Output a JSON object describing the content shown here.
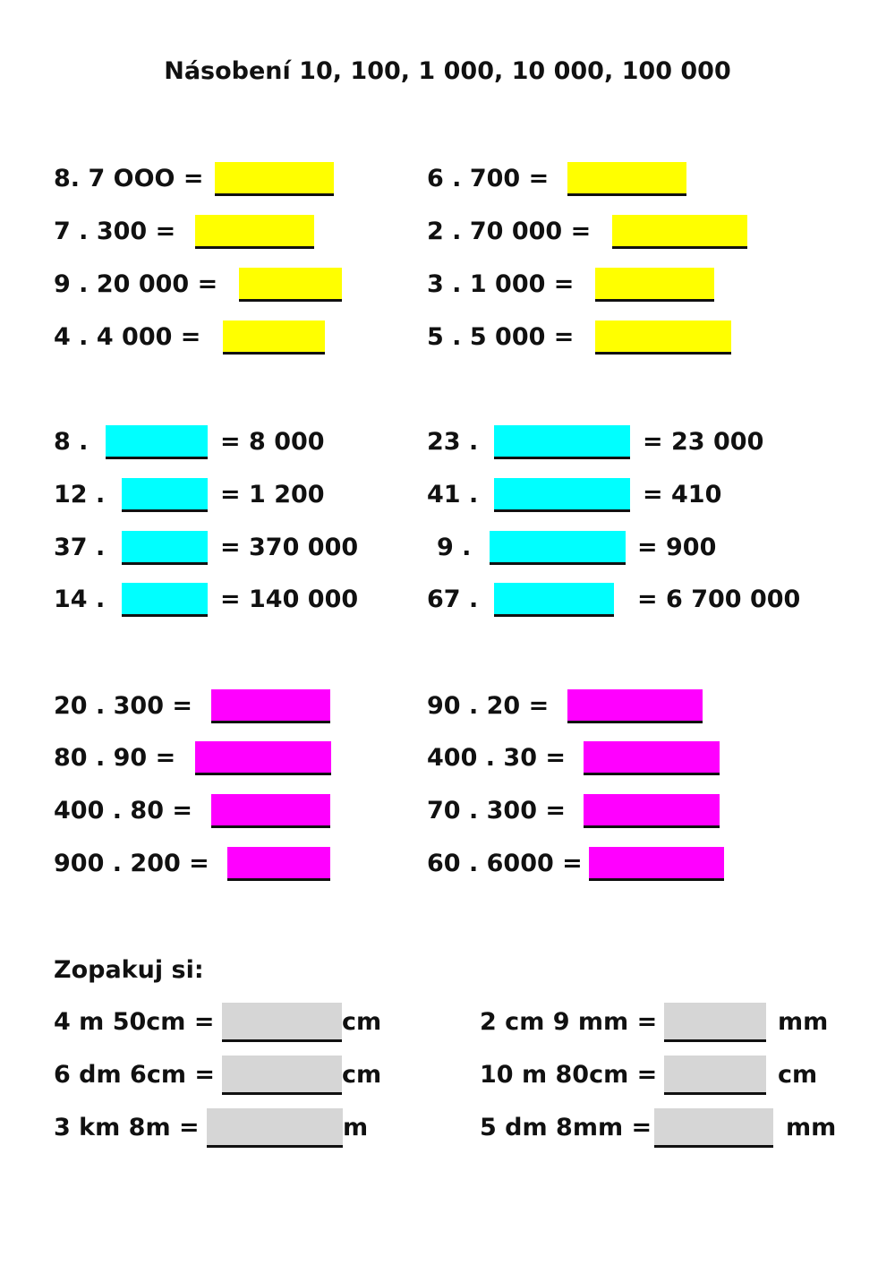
{
  "title": "Násobení 10, 100, 1 000, 10 000, 100 000",
  "colors": {
    "section1": "#ffff00",
    "section2": "#00ffff",
    "section3": "#ff00ff",
    "section4": "#d6d6d6"
  },
  "review_heading": "Zopakuj si:",
  "exercises": [
    {
      "prefix": "8. 7 OOO =",
      "suffix": "",
      "answer": ""
    },
    {
      "prefix": "7 . 300 =",
      "suffix": "",
      "answer": ""
    },
    {
      "prefix": "9 . 20 000 =",
      "suffix": "",
      "answer": ""
    },
    {
      "prefix": "4 . 4 000 =",
      "suffix": "",
      "answer": ""
    },
    {
      "prefix": "6 . 700 =",
      "suffix": "",
      "answer": ""
    },
    {
      "prefix": "2 . 70 000 =",
      "suffix": "",
      "answer": ""
    },
    {
      "prefix": "3 . 1 000 =",
      "suffix": "",
      "answer": ""
    },
    {
      "prefix": "5 . 5 000 =",
      "suffix": "",
      "answer": ""
    },
    {
      "prefix": "8 .",
      "suffix": "= 8 000",
      "answer": ""
    },
    {
      "prefix": "12 .",
      "suffix": "= 1 200",
      "answer": ""
    },
    {
      "prefix": "37 .",
      "suffix": "= 370 000",
      "answer": ""
    },
    {
      "prefix": "14 .",
      "suffix": "= 140 000",
      "answer": ""
    },
    {
      "prefix": "23 .",
      "suffix": "= 23 000",
      "answer": ""
    },
    {
      "prefix": "41 .",
      "suffix": "= 410",
      "answer": ""
    },
    {
      "prefix": "9 .",
      "suffix": "= 900",
      "answer": ""
    },
    {
      "prefix": "67 .",
      "suffix": "= 6 700 000",
      "answer": ""
    },
    {
      "prefix": "20 . 300 =",
      "suffix": "",
      "answer": ""
    },
    {
      "prefix": "80 . 90 =",
      "suffix": "",
      "answer": ""
    },
    {
      "prefix": "400 . 80 =",
      "suffix": "",
      "answer": ""
    },
    {
      "prefix": "900 . 200 =",
      "suffix": "",
      "answer": ""
    },
    {
      "prefix": "90 . 20 =",
      "suffix": "",
      "answer": ""
    },
    {
      "prefix": "400 . 30 =",
      "suffix": "",
      "answer": ""
    },
    {
      "prefix": "70 . 300 =",
      "suffix": "",
      "answer": ""
    },
    {
      "prefix": "60 . 6000 =",
      "suffix": "",
      "answer": ""
    },
    {
      "prefix": "4 m 50cm =",
      "suffix": "cm",
      "answer": ""
    },
    {
      "prefix": "6 dm 6cm =",
      "suffix": "cm",
      "answer": ""
    },
    {
      "prefix": "3 km 8m =",
      "suffix": "m",
      "answer": ""
    },
    {
      "prefix": "2 cm 9 mm =",
      "suffix": "mm",
      "answer": ""
    },
    {
      "prefix": "10 m 80cm =",
      "suffix": "cm",
      "answer": ""
    },
    {
      "prefix": "5 dm 8mm =",
      "suffix": "mm",
      "answer": ""
    }
  ]
}
